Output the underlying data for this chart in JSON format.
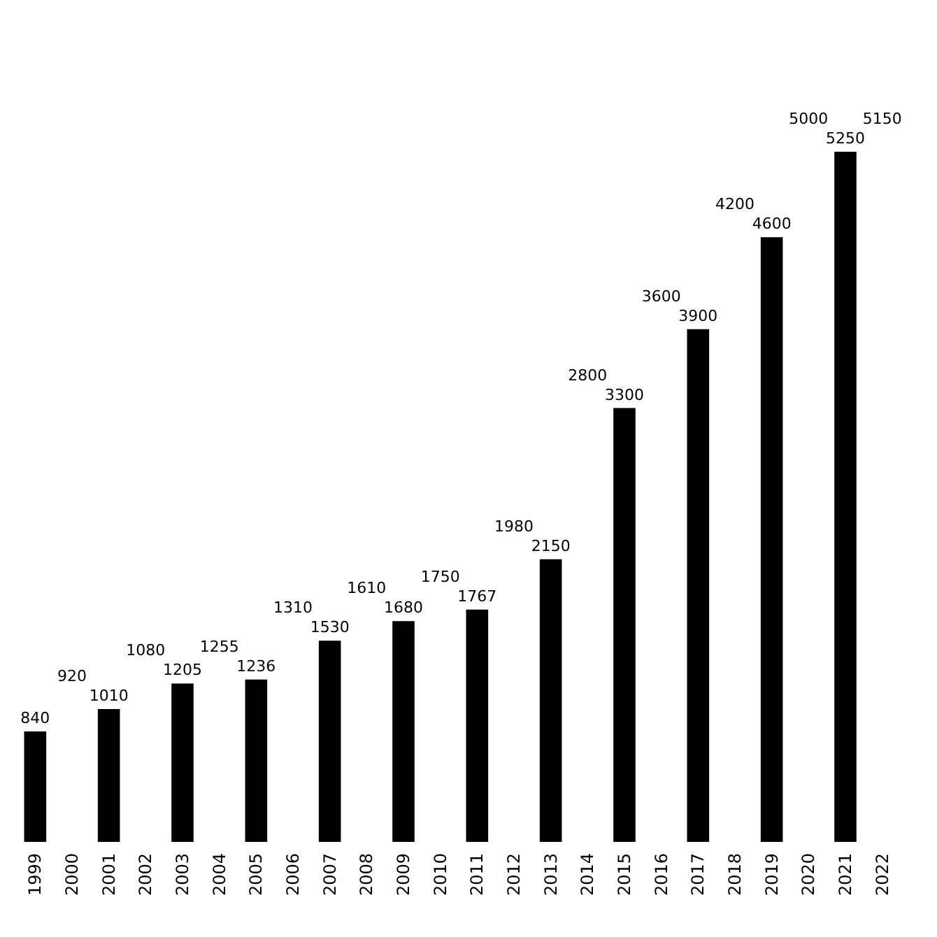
{
  "chart_data": {
    "type": "bar",
    "categories": [
      "1999",
      "2000",
      "2001",
      "2002",
      "2003",
      "2004",
      "2005",
      "2006",
      "2007",
      "2008",
      "2009",
      "2010",
      "2011",
      "2012",
      "2013",
      "2014",
      "2015",
      "2016",
      "2017",
      "2018",
      "2019",
      "2020",
      "2021",
      "2022"
    ],
    "values": [
      840,
      null,
      1010,
      null,
      1205,
      null,
      1236,
      null,
      1530,
      null,
      1680,
      null,
      1767,
      null,
      2150,
      null,
      3300,
      null,
      3900,
      null,
      4600,
      null,
      5250,
      null
    ],
    "value_labels": [
      "840",
      "920",
      "1010",
      "1080",
      "1205",
      "1255",
      "1236",
      "1310",
      "1530",
      "1610",
      "1680",
      "1750",
      "1767",
      "1980",
      "2150",
      "2800",
      "3300",
      "3600",
      "3900",
      "4200",
      "4600",
      "5000",
      "5250",
      "5150"
    ],
    "color": "#000000",
    "tick_labels": "x"
  }
}
